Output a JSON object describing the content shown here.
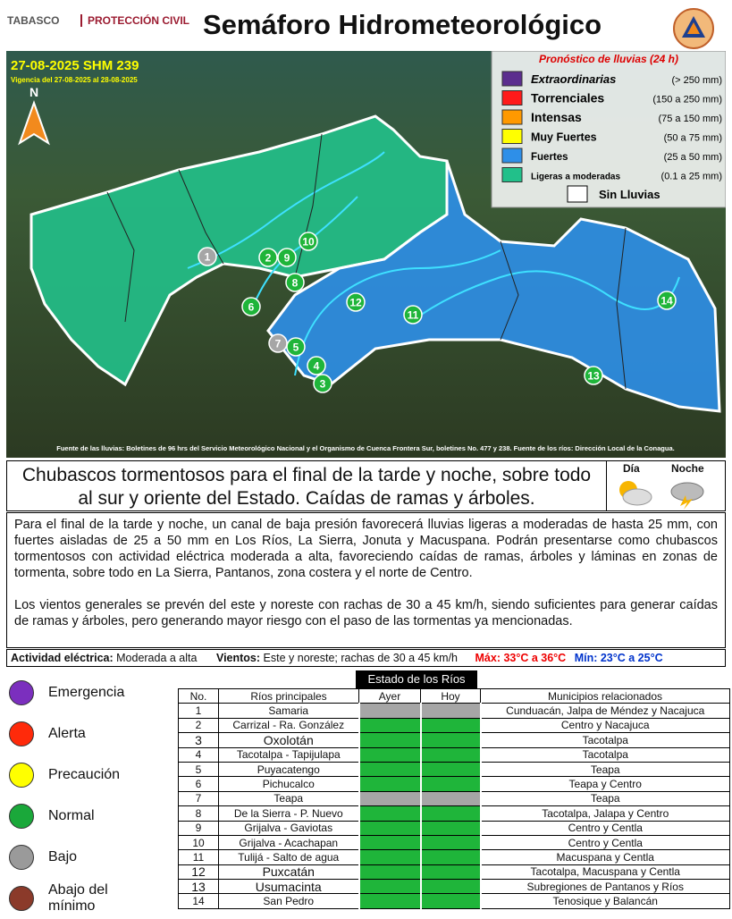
{
  "header": {
    "logo_left": "TABASCO",
    "logo_right": "PROTECCIÓN CIVIL",
    "title": "Semáforo Hidrometeorológico"
  },
  "map": {
    "date": "27-08-2025 SHM 239",
    "validity": "Vigencia del 27-08-2025 al 28-08-2025",
    "north": "N",
    "legend": {
      "title": "Pronóstico de lluvias (24 h)",
      "items": [
        {
          "label": "Extraordinarias",
          "range": "(> 250 mm)",
          "color": "#5b2d8e"
        },
        {
          "label": "Torrenciales",
          "range": "(150 a 250 mm)",
          "color": "#ff1a1a"
        },
        {
          "label": "Intensas",
          "range": "(75 a 150 mm)",
          "color": "#ff9900"
        },
        {
          "label": "Muy Fuertes",
          "range": "(50 a 75 mm)",
          "color": "#ffff00"
        },
        {
          "label": "Fuertes",
          "range": "(25 a 50 mm)",
          "color": "#2e8fe8"
        },
        {
          "label": "Ligeras a moderadas",
          "range": "(0.1 a 25 mm)",
          "color": "#22c08a"
        }
      ],
      "no_rain": "Sin Lluvias"
    },
    "source": "Fuente de las lluvias: Boletines de 96 hrs del Servicio Meteorológico Nacional y el Organismo de Cuenca Frontera Sur, boletines No. 477 y 238. Fuente de los ríos: Dirección Local de la Conagua."
  },
  "forecast": {
    "headline": "Chubascos tormentosos para el final de la tarde y noche, sobre todo al sur y oriente del Estado. Caídas de ramas y árboles.",
    "day": "Día",
    "night": "Noche",
    "paragraphs": [
      "Para el final de la tarde y noche, un canal de baja presión favorecerá lluvias ligeras a moderadas de hasta 25 mm, con fuertes aisladas de 25 a 50 mm en Los Ríos, La Sierra, Jonuta y Macuspana. Podrán presentarse como chubascos tormentosos con actividad eléctrica moderada a alta, favoreciendo caídas de ramas, árboles y láminas en zonas de tormenta, sobre todo en La Sierra, Pantanos, zona costera y el norte de Centro.",
      "Los vientos generales se prevén del este y noreste con rachas de 30 a 45 km/h, siendo suficientes para generar caídas de ramas y árboles, pero generando mayor riesgo con el paso de las tormentas ya mencionadas."
    ]
  },
  "summary": {
    "electric_label": "Actividad eléctrica:",
    "electric_value": "Moderada a alta",
    "wind_label": "Vientos:",
    "wind_value": "Este y noreste; rachas de 30 a 45 km/h",
    "max": "Máx: 33°C a 36°C",
    "min": "Mín: 23°C a 25°C"
  },
  "status_legend": [
    {
      "label": "Emergencia",
      "color": "#7b2fbe"
    },
    {
      "label": "Alerta",
      "color": "#ff2a0a"
    },
    {
      "label": "Precaución",
      "color": "#ffff00"
    },
    {
      "label": "Normal",
      "color": "#1aa83a"
    },
    {
      "label": "Bajo",
      "color": "#9a9a9a"
    },
    {
      "label": "Abajo del mínimo",
      "color": "#8b3a2a"
    }
  ],
  "table": {
    "title": "Estado de los Ríos",
    "headers": [
      "No.",
      "Ríos principales",
      "Ayer",
      "Hoy",
      "Municipios relacionados"
    ],
    "rows": [
      {
        "no": "1",
        "river": "Samaria",
        "ayer": "#a6a6a6",
        "hoy": "#a6a6a6",
        "municipalities": "Cunduacán, Jalpa de Méndez y Nacajuca"
      },
      {
        "no": "2",
        "river": "Carrizal - Ra. González",
        "ayer": "#1fb53a",
        "hoy": "#1fb53a",
        "municipalities": "Centro y Nacajuca"
      },
      {
        "no": "3",
        "river": "Oxolotán",
        "ayer": "#1fb53a",
        "hoy": "#1fb53a",
        "municipalities": "Tacotalpa"
      },
      {
        "no": "4",
        "river": "Tacotalpa - Tapijulapa",
        "ayer": "#1fb53a",
        "hoy": "#1fb53a",
        "municipalities": "Tacotalpa"
      },
      {
        "no": "5",
        "river": "Puyacatengo",
        "ayer": "#1fb53a",
        "hoy": "#1fb53a",
        "municipalities": "Teapa"
      },
      {
        "no": "6",
        "river": "Pichucalco",
        "ayer": "#1fb53a",
        "hoy": "#1fb53a",
        "municipalities": "Teapa y Centro"
      },
      {
        "no": "7",
        "river": "Teapa",
        "ayer": "#a6a6a6",
        "hoy": "#a6a6a6",
        "municipalities": "Teapa"
      },
      {
        "no": "8",
        "river": "De la Sierra - P. Nuevo",
        "ayer": "#1fb53a",
        "hoy": "#1fb53a",
        "municipalities": "Tacotalpa, Jalapa y Centro"
      },
      {
        "no": "9",
        "river": "Grijalva - Gaviotas",
        "ayer": "#1fb53a",
        "hoy": "#1fb53a",
        "municipalities": "Centro y Centla"
      },
      {
        "no": "10",
        "river": "Grijalva - Acachapan",
        "ayer": "#1fb53a",
        "hoy": "#1fb53a",
        "municipalities": "Centro y Centla"
      },
      {
        "no": "11",
        "river": "Tulijá - Salto de agua",
        "ayer": "#1fb53a",
        "hoy": "#1fb53a",
        "municipalities": "Macuspana y Centla"
      },
      {
        "no": "12",
        "river": "Puxcatán",
        "ayer": "#1fb53a",
        "hoy": "#1fb53a",
        "municipalities": "Tacotalpa, Macuspana y Centla"
      },
      {
        "no": "13",
        "river": "Usumacinta",
        "ayer": "#1fb53a",
        "hoy": "#1fb53a",
        "municipalities": "Subregiones de Pantanos y Ríos"
      },
      {
        "no": "14",
        "river": "San Pedro",
        "ayer": "#1fb53a",
        "hoy": "#1fb53a",
        "municipalities": "Tenosique y Balancán"
      }
    ]
  }
}
